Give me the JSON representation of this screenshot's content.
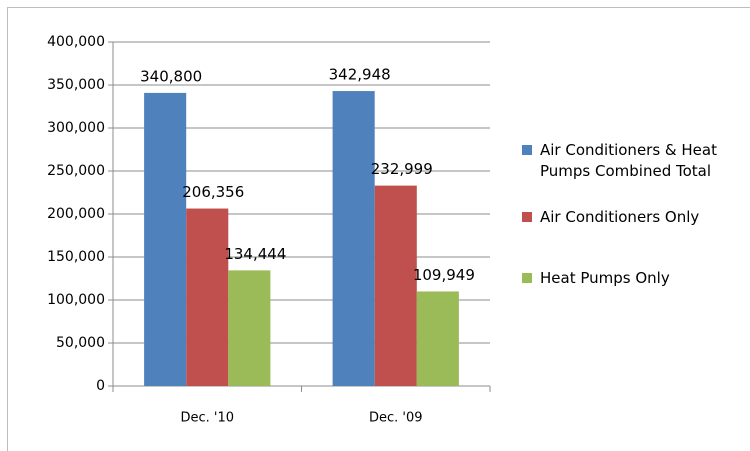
{
  "chart_data": {
    "type": "bar",
    "categories": [
      "Dec. '10",
      "Dec. '09"
    ],
    "series": [
      {
        "name": "Air Conditioners & Heat Pumps Combined Total",
        "color": "#4f81bd",
        "values": [
          340800,
          342948
        ],
        "value_labels": [
          "340,800",
          "342,948"
        ]
      },
      {
        "name": "Air Conditioners Only",
        "color": "#c0504d",
        "values": [
          206356,
          232999
        ],
        "value_labels": [
          "206,356",
          "232,999"
        ]
      },
      {
        "name": "Heat Pumps Only",
        "color": "#9bbb59",
        "values": [
          134444,
          109949
        ],
        "value_labels": [
          "134,444",
          "109,949"
        ]
      }
    ],
    "ylim": [
      0,
      400000
    ],
    "yticks": [
      0,
      {
        "value": 50000,
        "label": "50,000"
      },
      {
        "value": 100000,
        "label": "100,000"
      },
      {
        "value": 150000,
        "label": "150,000"
      },
      {
        "value": 200000,
        "label": "200,000"
      },
      {
        "value": 250000,
        "label": "250,000"
      },
      {
        "value": 300000,
        "label": "300,000"
      },
      {
        "value": 350000,
        "label": "350,000"
      },
      {
        "value": 400000,
        "label": "400,000"
      }
    ],
    "grid": true,
    "legend": "right"
  }
}
